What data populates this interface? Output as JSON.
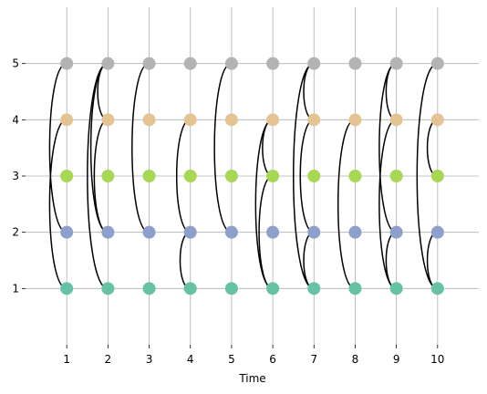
{
  "chart_data": {
    "type": "temporal-network",
    "title": "",
    "xlabel": "Time",
    "ylabel": "",
    "xlim": [
      0,
      11
    ],
    "ylim": [
      0,
      6
    ],
    "x_ticks": [
      1,
      2,
      3,
      4,
      5,
      6,
      7,
      8,
      9,
      10
    ],
    "y_ticks": [
      1,
      2,
      3,
      4,
      5
    ],
    "grid": true,
    "node_colors": {
      "1": "#66c2a5",
      "2": "#8da0cb",
      "3": "#a6d854",
      "4": "#e5c494",
      "5": "#b3b3b3"
    },
    "edge_color": "#000000",
    "edges": [
      {
        "t": 1,
        "a": 2,
        "b": 5
      },
      {
        "t": 1,
        "a": 1,
        "b": 4
      },
      {
        "t": 2,
        "a": 2,
        "b": 5
      },
      {
        "t": 2,
        "a": 1,
        "b": 5
      },
      {
        "t": 2,
        "a": 4,
        "b": 5
      },
      {
        "t": 2,
        "a": 2,
        "b": 4
      },
      {
        "t": 3,
        "a": 2,
        "b": 5
      },
      {
        "t": 4,
        "a": 2,
        "b": 4
      },
      {
        "t": 4,
        "a": 1,
        "b": 2
      },
      {
        "t": 5,
        "a": 2,
        "b": 5
      },
      {
        "t": 6,
        "a": 1,
        "b": 4
      },
      {
        "t": 6,
        "a": 3,
        "b": 4
      },
      {
        "t": 6,
        "a": 1,
        "b": 3
      },
      {
        "t": 7,
        "a": 1,
        "b": 5
      },
      {
        "t": 7,
        "a": 4,
        "b": 5
      },
      {
        "t": 7,
        "a": 2,
        "b": 4
      },
      {
        "t": 7,
        "a": 1,
        "b": 2
      },
      {
        "t": 8,
        "a": 1,
        "b": 4
      },
      {
        "t": 9,
        "a": 2,
        "b": 5
      },
      {
        "t": 9,
        "a": 4,
        "b": 5
      },
      {
        "t": 9,
        "a": 1,
        "b": 4
      },
      {
        "t": 9,
        "a": 1,
        "b": 2
      },
      {
        "t": 10,
        "a": 1,
        "b": 5
      },
      {
        "t": 10,
        "a": 3,
        "b": 4
      },
      {
        "t": 10,
        "a": 1,
        "b": 2
      }
    ]
  }
}
